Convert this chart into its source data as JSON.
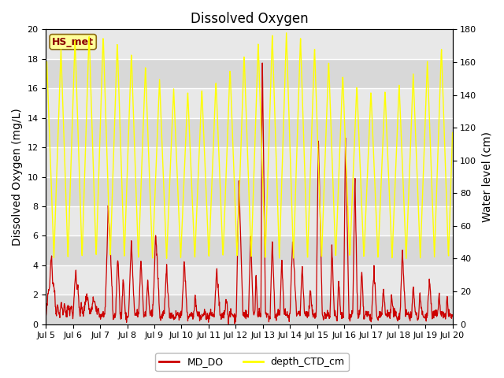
{
  "title": "Dissolved Oxygen",
  "ylabel_left": "Dissolved Oxygen (mg/L)",
  "ylabel_right": "Water level (cm)",
  "ylim_left": [
    0,
    20
  ],
  "ylim_right": [
    0,
    180
  ],
  "xtick_labels": [
    "Jul 5",
    "Jul 6",
    "Jul 7",
    "Jul 8",
    "Jul 9",
    "Jul 10",
    "Jul 11",
    "Jul 12",
    "Jul 13",
    "Jul 14",
    "Jul 15",
    "Jul 16",
    "Jul 17",
    "Jul 18",
    "Jul 19",
    "Jul 20"
  ],
  "color_do": "#cc0000",
  "color_depth": "#ffff00",
  "color_bg_dark": "#e0e0e0",
  "color_bg_light": "#ebebeb",
  "label_do": "MD_DO",
  "label_depth": "depth_CTD_cm",
  "station_label": "HS_met",
  "title_fontsize": 12,
  "axis_label_fontsize": 10
}
